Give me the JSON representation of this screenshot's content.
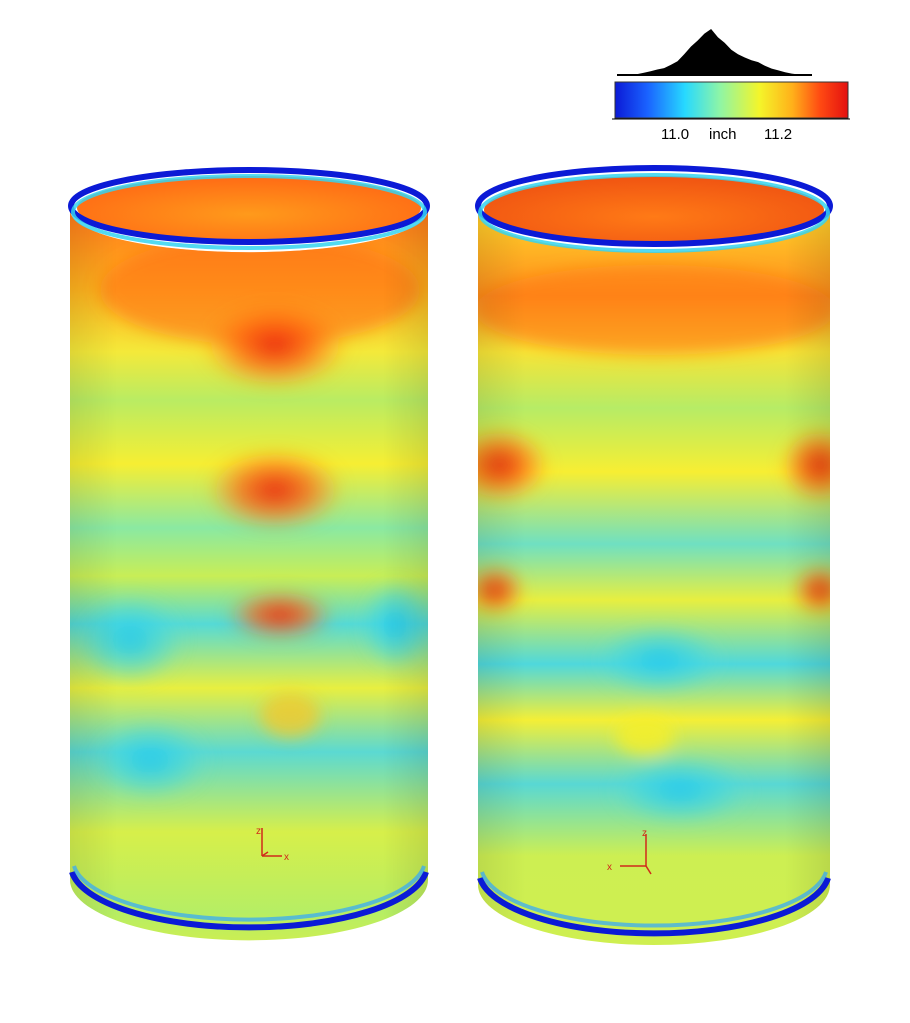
{
  "legend": {
    "min_label": "11.0",
    "unit_label": "inch",
    "max_label": "11.2",
    "histogram": [
      0,
      0,
      0,
      0.02,
      0.05,
      0.08,
      0.12,
      0.15,
      0.22,
      0.3,
      0.45,
      0.62,
      0.75,
      0.9,
      1.0,
      0.82,
      0.7,
      0.55,
      0.45,
      0.38,
      0.32,
      0.28,
      0.2,
      0.14,
      0.1,
      0.06,
      0.03,
      0.01,
      0,
      0
    ],
    "colormap": [
      "#0b1ad6",
      "#1a63ff",
      "#27d9ff",
      "#8ef5a6",
      "#f4f52a",
      "#ffb11a",
      "#ff4a12",
      "#e31010"
    ]
  },
  "colors": {
    "blue": "#0b1ad6",
    "cyan": "#2fd9ec",
    "green": "#a6ec5d",
    "yellow": "#f2ee33",
    "orange": "#ff9a1b",
    "red": "#f03c10",
    "axis": "#d02a1a"
  },
  "cylinders": [
    {
      "name": "left-cylinder",
      "view": "front",
      "axes": [
        "z",
        "x"
      ]
    },
    {
      "name": "right-cylinder",
      "view": "back",
      "axes": [
        "z",
        "x"
      ]
    }
  ]
}
